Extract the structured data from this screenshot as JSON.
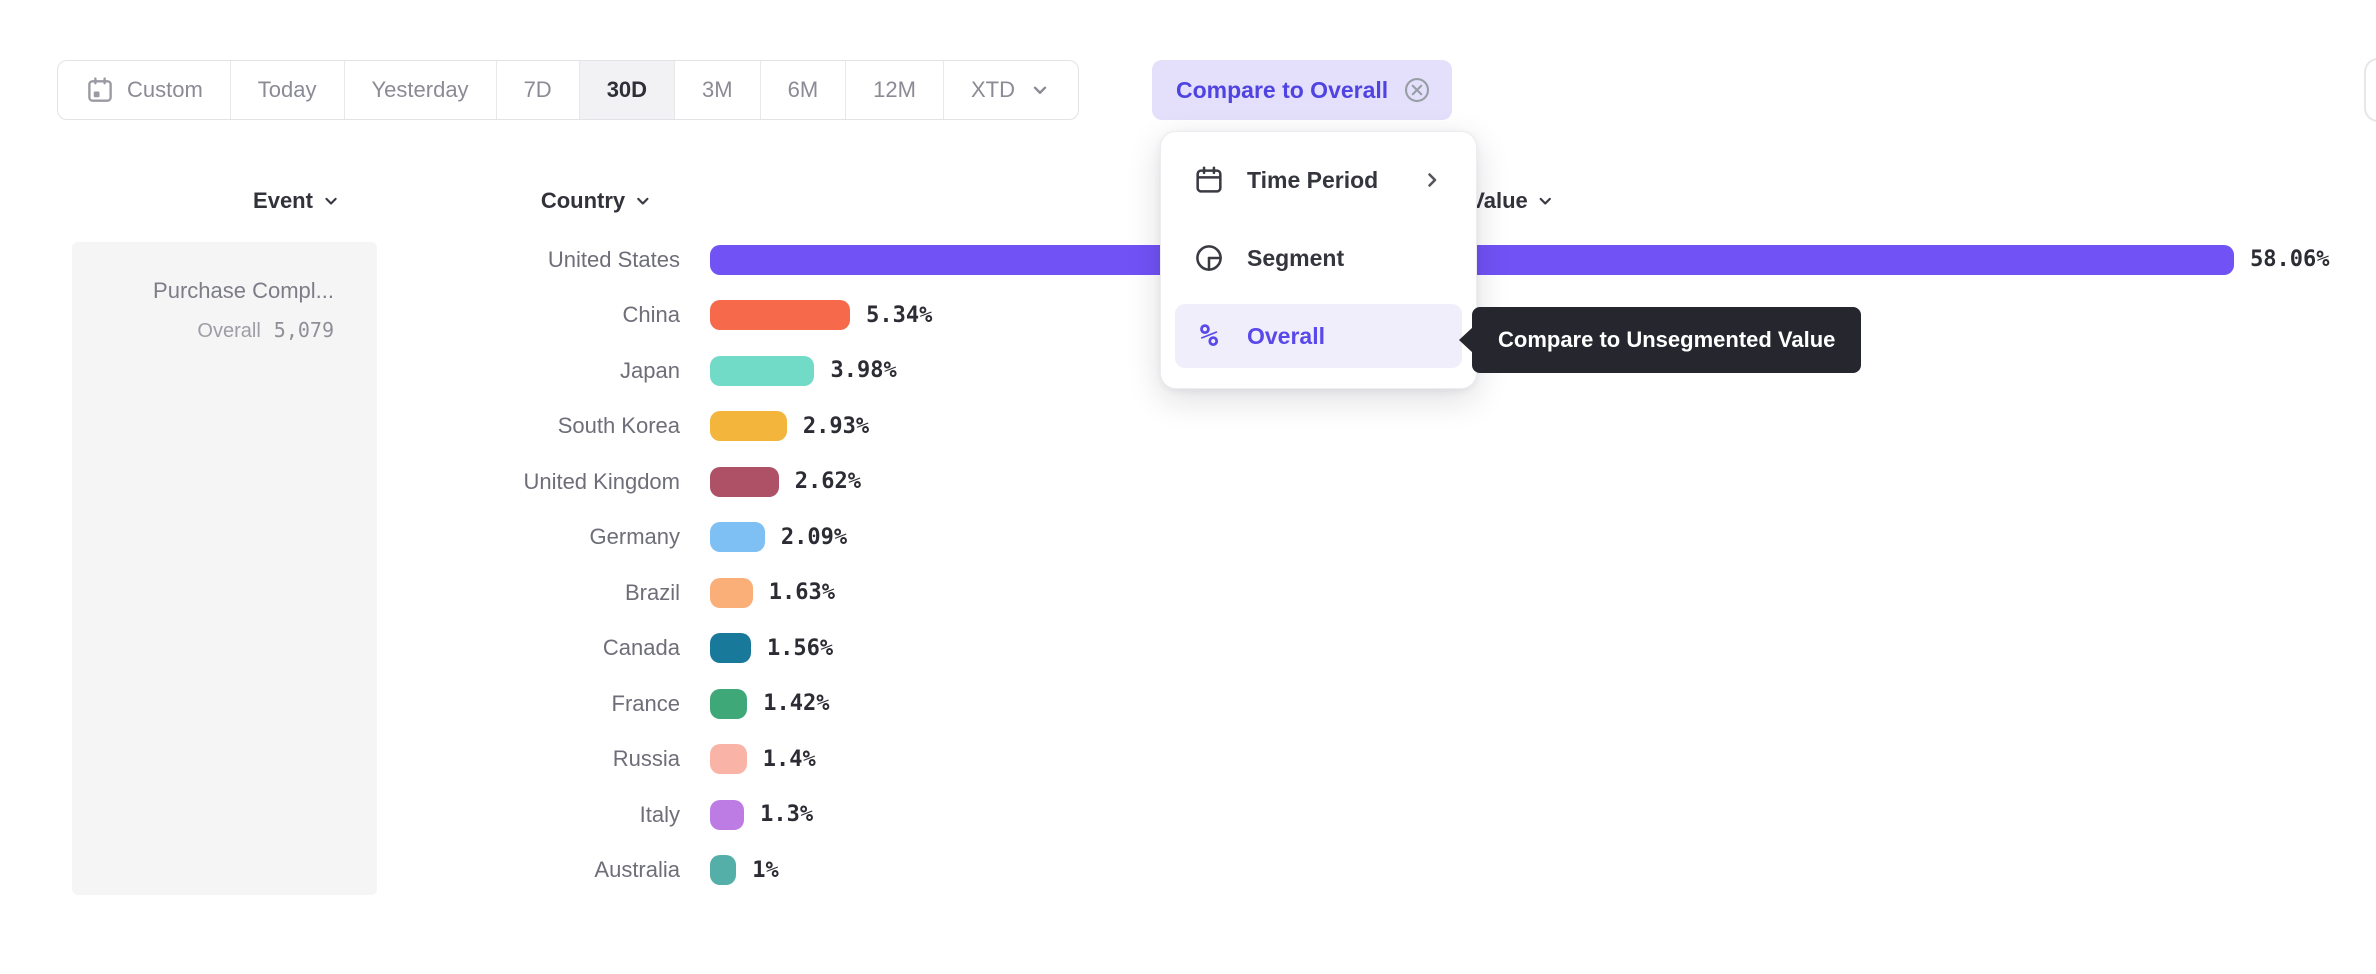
{
  "toolbar": {
    "time_ranges": [
      {
        "label": "Custom",
        "icon": "calendar",
        "selected": false
      },
      {
        "label": "Today",
        "selected": false
      },
      {
        "label": "Yesterday",
        "selected": false
      },
      {
        "label": "7D",
        "selected": false
      },
      {
        "label": "30D",
        "selected": true
      },
      {
        "label": "3M",
        "selected": false
      },
      {
        "label": "6M",
        "selected": false
      },
      {
        "label": "12M",
        "selected": false
      },
      {
        "label": "XTD",
        "selected": false,
        "has_dropdown": true
      }
    ],
    "compare_button": {
      "label": "Compare to Overall",
      "icon": "circled-x",
      "bg": "#e4e0fb",
      "color": "#4f43e2"
    }
  },
  "columns": {
    "event": "Event",
    "country": "Country",
    "value": "Value"
  },
  "event_card": {
    "name": "Purchase Compl...",
    "overall_label": "Overall",
    "overall_value": "5,079"
  },
  "menu": {
    "items": [
      {
        "label": "Time Period",
        "icon": "calendar",
        "has_submenu": true,
        "active": false
      },
      {
        "label": "Segment",
        "icon": "segment",
        "has_submenu": false,
        "active": false
      },
      {
        "label": "Overall",
        "icon": "percent",
        "has_submenu": false,
        "active": true
      }
    ],
    "active_color": "#5a49e9",
    "active_bg": "#f0eefb"
  },
  "tooltip": {
    "text": "Compare to Unsegmented Value",
    "bg": "#26262e"
  },
  "chart_data": {
    "type": "bar",
    "orientation": "horizontal",
    "title": "",
    "xlabel": "Value",
    "ylabel": "Country",
    "categories": [
      "United States",
      "China",
      "Japan",
      "South Korea",
      "United Kingdom",
      "Germany",
      "Brazil",
      "Canada",
      "France",
      "Russia",
      "Italy",
      "Australia"
    ],
    "values": [
      58.06,
      5.34,
      3.98,
      2.93,
      2.62,
      2.09,
      1.63,
      1.56,
      1.42,
      1.4,
      1.3,
      1.0
    ],
    "labels": [
      "58.06%",
      "5.34%",
      "3.98%",
      "2.93%",
      "2.62%",
      "2.09%",
      "1.63%",
      "1.56%",
      "1.42%",
      "1.4%",
      "1.3%",
      "1%"
    ],
    "colors": [
      "#7152f5",
      "#f6694b",
      "#72dbc8",
      "#f4b53c",
      "#ae5066",
      "#7ebff4",
      "#faaf79",
      "#19799b",
      "#3fa878",
      "#fab4a7",
      "#bc7ce4",
      "#54afa8"
    ],
    "xlim": [
      0,
      60
    ],
    "grid": false,
    "legend": false
  }
}
